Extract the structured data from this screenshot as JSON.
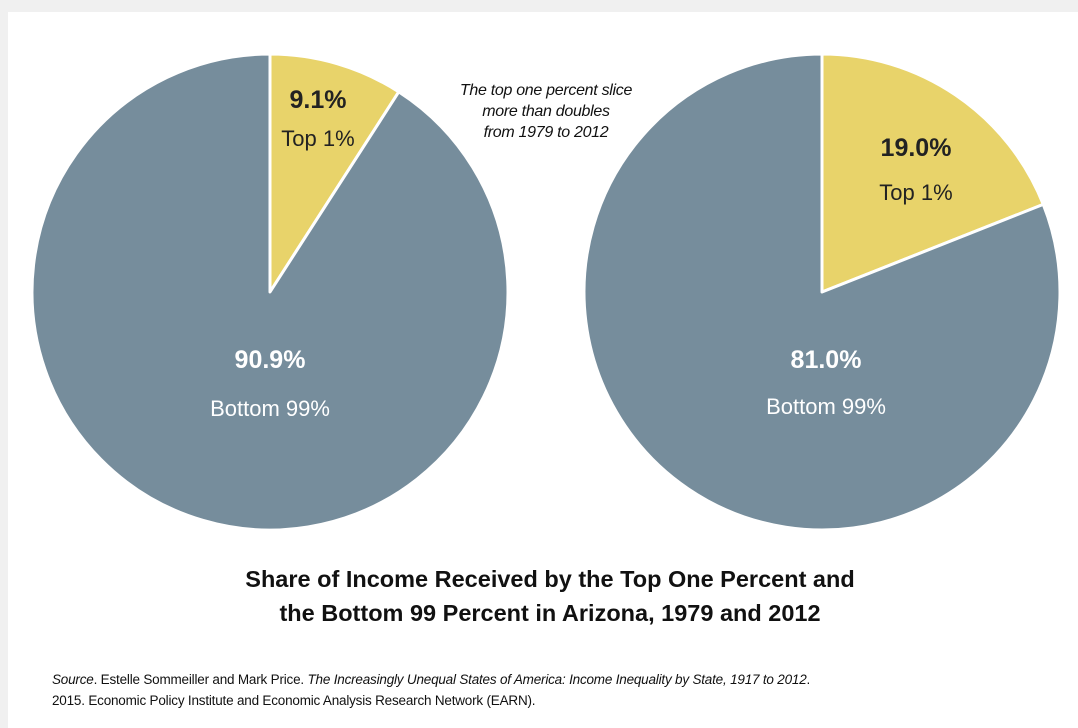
{
  "chart_data": [
    {
      "type": "pie",
      "year": "1979",
      "slices": [
        {
          "label": "Top 1%",
          "value": 9.1,
          "display": "9.1%",
          "color": "#e8d36a"
        },
        {
          "label": "Bottom 99%",
          "value": 90.9,
          "display": "90.9%",
          "color": "#768d9c"
        }
      ]
    },
    {
      "type": "pie",
      "year": "2012",
      "slices": [
        {
          "label": "Top 1%",
          "value": 19.0,
          "display": "19.0%",
          "color": "#e8d36a"
        },
        {
          "label": "Bottom 99%",
          "value": 81.0,
          "display": "81.0%",
          "color": "#768d9c"
        }
      ]
    }
  ],
  "annotation": {
    "lines": [
      "The top one percent slice",
      "more than doubles",
      "from 1979 to 2012"
    ]
  },
  "title": {
    "line1": "Share of Income Received by the Top One Percent and",
    "line2": "the Bottom 99 Percent in Arizona, 1979 and 2012"
  },
  "source": {
    "prefix": "Source",
    "authors": ". Estelle Sommeiller and Mark Price. ",
    "work": "The Increasingly Unequal States of America: Income Inequality by State, 1917 to 2012",
    "suffix": ".",
    "line2": "2015. Economic Policy Institute and Economic Analysis Research Network (EARN)."
  }
}
